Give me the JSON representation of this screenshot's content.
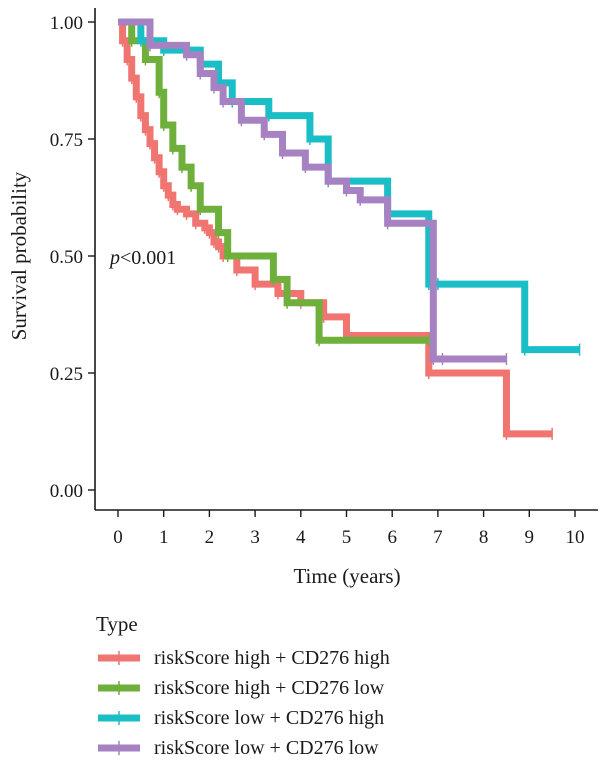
{
  "chart_data": {
    "type": "line",
    "subtype": "kaplan-meier survival curves",
    "xlabel": "Time (years)",
    "ylabel": "Survival probability",
    "xlim": [
      0,
      10
    ],
    "ylim": [
      0,
      1
    ],
    "xticks": [
      "0",
      "1",
      "2",
      "3",
      "4",
      "5",
      "6",
      "7",
      "8",
      "9",
      "10"
    ],
    "yticks": [
      "0.00",
      "0.25",
      "0.50",
      "0.75",
      "1.00"
    ],
    "annotation": {
      "prefix": "p",
      "text": "<0.001"
    },
    "grid": false,
    "legend_placement": "bottom",
    "legend_title": "Type",
    "series": [
      {
        "name": "riskScore high + CD276 high",
        "color": "#F07470",
        "x": [
          0,
          0.1,
          0.2,
          0.3,
          0.4,
          0.5,
          0.6,
          0.7,
          0.8,
          0.9,
          1.0,
          1.1,
          1.2,
          1.3,
          1.5,
          1.7,
          1.9,
          2.0,
          2.1,
          2.2,
          2.3,
          2.6,
          3.0,
          3.5,
          4.0,
          4.5,
          5.0,
          6.8,
          8.5,
          9.5
        ],
        "y": [
          1.0,
          0.96,
          0.92,
          0.88,
          0.84,
          0.8,
          0.77,
          0.74,
          0.71,
          0.68,
          0.65,
          0.63,
          0.61,
          0.6,
          0.59,
          0.57,
          0.56,
          0.55,
          0.53,
          0.52,
          0.5,
          0.47,
          0.44,
          0.42,
          0.4,
          0.37,
          0.33,
          0.25,
          0.12,
          0.12
        ]
      },
      {
        "name": "riskScore high + CD276 low",
        "color": "#6FAF3B",
        "x": [
          0,
          0.3,
          0.6,
          0.9,
          1.0,
          1.2,
          1.4,
          1.6,
          1.8,
          2.2,
          2.4,
          3.4,
          3.7,
          4.4,
          6.8
        ],
        "y": [
          1.0,
          0.96,
          0.92,
          0.85,
          0.78,
          0.73,
          0.69,
          0.65,
          0.6,
          0.55,
          0.5,
          0.45,
          0.4,
          0.32,
          0.32
        ]
      },
      {
        "name": "riskScore low + CD276 high",
        "color": "#1ABEC6",
        "x": [
          0,
          0.5,
          1.0,
          1.8,
          2.2,
          2.5,
          3.3,
          4.2,
          4.6,
          5.9,
          6.8,
          7.0,
          8.9,
          10.1
        ],
        "y": [
          1.0,
          0.96,
          0.94,
          0.91,
          0.87,
          0.83,
          0.8,
          0.75,
          0.66,
          0.59,
          0.44,
          0.44,
          0.3,
          0.3
        ]
      },
      {
        "name": "riskScore low + CD276 low",
        "color": "#A682C2",
        "x": [
          0,
          0.7,
          1.5,
          1.8,
          2.1,
          2.3,
          2.7,
          3.2,
          3.6,
          4.1,
          4.6,
          5.0,
          5.3,
          5.9,
          6.9,
          7.1,
          8.5
        ],
        "y": [
          1.0,
          0.95,
          0.93,
          0.89,
          0.86,
          0.83,
          0.79,
          0.76,
          0.72,
          0.69,
          0.66,
          0.64,
          0.62,
          0.57,
          0.28,
          0.28,
          0.28
        ]
      }
    ]
  }
}
